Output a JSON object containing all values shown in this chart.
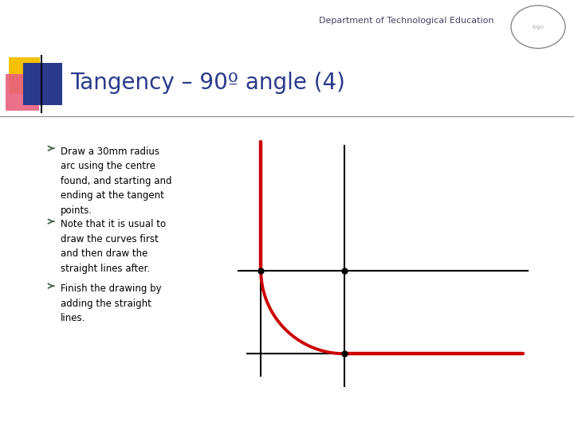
{
  "title": "Tangency – 90º angle (4)",
  "header": "Department of Technological Education",
  "bg_color": "#ffffff",
  "title_color": "#2b3a8c",
  "title_fontsize": 20,
  "header_fontsize": 8,
  "text_color": "#000000",
  "bullets": [
    "Draw a 30mm radius\narc using the centre\nfound, and starting and\nending at the tangent\npoints.",
    "Note that it is usual to\ndraw the curves first\nand then draw the\nstraight lines after.",
    "Finish the drawing by\nadding the straight\nlines."
  ],
  "bullet_fontsize": 8.5,
  "arc_color": "#cc0000",
  "line_color": "#000000",
  "dot_color": "#000000",
  "thin_lw": 1.5,
  "arc_lw": 2.8,
  "thick_lw": 3.2,
  "deco_yellow": "#f5c000",
  "deco_pink": "#e86080",
  "deco_blue": "#2b3a8c",
  "separator_color": "#888888"
}
